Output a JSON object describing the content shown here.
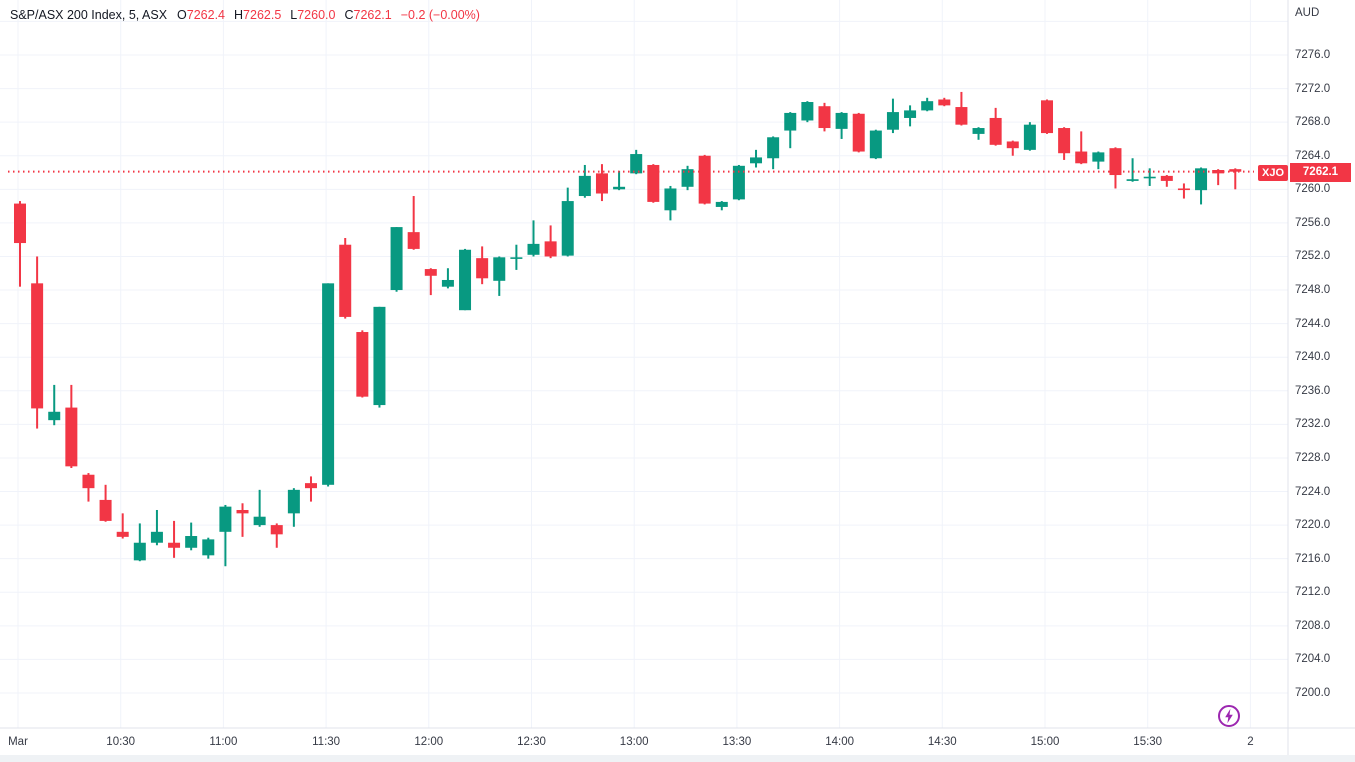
{
  "legend": {
    "title": "S&P/ASX 200 Index, 5, ASX",
    "ohlc": [
      {
        "k": "O",
        "v": "7262.4"
      },
      {
        "k": "H",
        "v": "7262.5"
      },
      {
        "k": "L",
        "v": "7260.0"
      },
      {
        "k": "C",
        "v": "7262.1"
      }
    ],
    "change": "−0.2 (−0.00%)"
  },
  "price_axis": {
    "currency": "AUD",
    "ticks": [
      "7276.0",
      "7272.0",
      "7268.0",
      "7264.0",
      "7260.0",
      "7256.0",
      "7252.0",
      "7248.0",
      "7244.0",
      "7240.0",
      "7236.0",
      "7232.0",
      "7228.0",
      "7224.0",
      "7220.0",
      "7216.0",
      "7212.0",
      "7208.0",
      "7204.0",
      "7200.0"
    ],
    "symbol_tag": "XJO",
    "last_price_label": "7262.1",
    "last_price": 7262.1
  },
  "time_axis": {
    "ticks": [
      "Mar",
      "10:30",
      "11:00",
      "11:30",
      "12:00",
      "12:30",
      "13:00",
      "13:30",
      "14:00",
      "14:30",
      "15:00",
      "15:30",
      "2"
    ]
  },
  "colors": {
    "up": "#089981",
    "down": "#f23645",
    "grid": "#f0f3fa",
    "separator": "#e0e3eb",
    "axis_text": "#363a45",
    "legend_text": "#131722",
    "badge": "#f23645",
    "price_line": "#f23645",
    "icon_purple": "#9c27b0"
  },
  "chart_data": {
    "type": "candlestick",
    "title": "S&P/ASX 200 Index, 5, ASX",
    "symbol": "XJO",
    "interval_minutes": 5,
    "currency": "AUD",
    "ylim": [
      7200,
      7280
    ],
    "y_tick_step": 4,
    "grid": true,
    "last_price": 7262.1,
    "x_ticks": [
      "Mar",
      "10:30",
      "11:00",
      "11:30",
      "12:00",
      "12:30",
      "13:00",
      "13:30",
      "14:00",
      "14:30",
      "15:00",
      "15:30",
      "2"
    ],
    "candles": [
      {
        "t": "10:00",
        "o": 7258.3,
        "h": 7258.6,
        "l": 7248.4,
        "c": 7253.6
      },
      {
        "t": "10:05",
        "o": 7248.8,
        "h": 7252.0,
        "l": 7231.5,
        "c": 7233.9
      },
      {
        "t": "10:10",
        "o": 7232.5,
        "h": 7236.7,
        "l": 7231.9,
        "c": 7233.5
      },
      {
        "t": "10:15",
        "o": 7234.0,
        "h": 7236.7,
        "l": 7226.8,
        "c": 7227.0
      },
      {
        "t": "10:20",
        "o": 7226.0,
        "h": 7226.2,
        "l": 7222.8,
        "c": 7224.4
      },
      {
        "t": "10:25",
        "o": 7223.0,
        "h": 7224.8,
        "l": 7220.4,
        "c": 7220.5
      },
      {
        "t": "10:30",
        "o": 7219.2,
        "h": 7221.4,
        "l": 7218.4,
        "c": 7218.6
      },
      {
        "t": "10:35",
        "o": 7215.8,
        "h": 7220.2,
        "l": 7215.7,
        "c": 7217.9
      },
      {
        "t": "10:40",
        "o": 7217.9,
        "h": 7221.8,
        "l": 7217.6,
        "c": 7219.2
      },
      {
        "t": "10:45",
        "o": 7217.9,
        "h": 7220.5,
        "l": 7216.1,
        "c": 7217.3
      },
      {
        "t": "10:50",
        "o": 7217.3,
        "h": 7220.3,
        "l": 7217.0,
        "c": 7218.7
      },
      {
        "t": "10:55",
        "o": 7216.4,
        "h": 7218.5,
        "l": 7216.0,
        "c": 7218.3
      },
      {
        "t": "11:00",
        "o": 7219.2,
        "h": 7222.4,
        "l": 7215.1,
        "c": 7222.2
      },
      {
        "t": "11:05",
        "o": 7221.8,
        "h": 7222.6,
        "l": 7218.6,
        "c": 7221.4
      },
      {
        "t": "11:10",
        "o": 7220.0,
        "h": 7224.2,
        "l": 7219.8,
        "c": 7221.0
      },
      {
        "t": "11:15",
        "o": 7220.0,
        "h": 7220.2,
        "l": 7217.3,
        "c": 7218.9
      },
      {
        "t": "11:20",
        "o": 7221.4,
        "h": 7224.4,
        "l": 7219.8,
        "c": 7224.2
      },
      {
        "t": "11:25",
        "o": 7225.0,
        "h": 7225.8,
        "l": 7222.8,
        "c": 7224.4
      },
      {
        "t": "11:30",
        "o": 7224.8,
        "h": 7248.8,
        "l": 7224.6,
        "c": 7248.8
      },
      {
        "t": "11:35",
        "o": 7253.4,
        "h": 7254.2,
        "l": 7244.6,
        "c": 7244.8
      },
      {
        "t": "11:40",
        "o": 7243.0,
        "h": 7243.2,
        "l": 7235.2,
        "c": 7235.3
      },
      {
        "t": "11:45",
        "o": 7234.3,
        "h": 7246.0,
        "l": 7234.0,
        "c": 7246.0
      },
      {
        "t": "11:50",
        "o": 7248.0,
        "h": 7255.5,
        "l": 7247.8,
        "c": 7255.5
      },
      {
        "t": "11:55",
        "o": 7254.9,
        "h": 7259.2,
        "l": 7252.8,
        "c": 7252.9
      },
      {
        "t": "12:00",
        "o": 7250.5,
        "h": 7250.6,
        "l": 7247.4,
        "c": 7249.7
      },
      {
        "t": "12:05",
        "o": 7248.4,
        "h": 7250.6,
        "l": 7248.2,
        "c": 7249.2
      },
      {
        "t": "12:10",
        "o": 7245.6,
        "h": 7252.9,
        "l": 7245.6,
        "c": 7252.8
      },
      {
        "t": "12:15",
        "o": 7251.8,
        "h": 7253.2,
        "l": 7248.7,
        "c": 7249.4
      },
      {
        "t": "12:20",
        "o": 7249.1,
        "h": 7252.0,
        "l": 7247.3,
        "c": 7251.9
      },
      {
        "t": "12:25",
        "o": 7251.8,
        "h": 7253.4,
        "l": 7250.4,
        "c": 7251.9
      },
      {
        "t": "12:30",
        "o": 7252.2,
        "h": 7256.3,
        "l": 7252.0,
        "c": 7253.5
      },
      {
        "t": "12:35",
        "o": 7253.8,
        "h": 7255.7,
        "l": 7251.8,
        "c": 7252.0
      },
      {
        "t": "12:40",
        "o": 7252.1,
        "h": 7260.2,
        "l": 7252.0,
        "c": 7258.6
      },
      {
        "t": "12:45",
        "o": 7259.2,
        "h": 7262.9,
        "l": 7259.0,
        "c": 7261.6
      },
      {
        "t": "12:50",
        "o": 7261.9,
        "h": 7263.0,
        "l": 7258.6,
        "c": 7259.5
      },
      {
        "t": "12:55",
        "o": 7260.0,
        "h": 7262.2,
        "l": 7259.9,
        "c": 7260.3
      },
      {
        "t": "13:00",
        "o": 7261.9,
        "h": 7264.7,
        "l": 7261.8,
        "c": 7264.2
      },
      {
        "t": "13:05",
        "o": 7262.9,
        "h": 7263.0,
        "l": 7258.4,
        "c": 7258.5
      },
      {
        "t": "13:10",
        "o": 7257.5,
        "h": 7260.4,
        "l": 7256.3,
        "c": 7260.1
      },
      {
        "t": "13:15",
        "o": 7260.3,
        "h": 7262.8,
        "l": 7259.9,
        "c": 7262.4
      },
      {
        "t": "13:20",
        "o": 7264.0,
        "h": 7264.1,
        "l": 7258.2,
        "c": 7258.3
      },
      {
        "t": "13:25",
        "o": 7257.9,
        "h": 7258.6,
        "l": 7257.5,
        "c": 7258.5
      },
      {
        "t": "13:30",
        "o": 7258.8,
        "h": 7262.9,
        "l": 7258.7,
        "c": 7262.8
      },
      {
        "t": "13:35",
        "o": 7263.1,
        "h": 7264.7,
        "l": 7262.6,
        "c": 7263.8
      },
      {
        "t": "13:40",
        "o": 7263.7,
        "h": 7266.3,
        "l": 7262.4,
        "c": 7266.2
      },
      {
        "t": "13:45",
        "o": 7267.0,
        "h": 7269.2,
        "l": 7264.9,
        "c": 7269.1
      },
      {
        "t": "13:50",
        "o": 7268.2,
        "h": 7270.5,
        "l": 7268.0,
        "c": 7270.4
      },
      {
        "t": "13:55",
        "o": 7269.9,
        "h": 7270.3,
        "l": 7266.9,
        "c": 7267.3
      },
      {
        "t": "14:00",
        "o": 7267.2,
        "h": 7269.2,
        "l": 7266.0,
        "c": 7269.1
      },
      {
        "t": "14:05",
        "o": 7269.0,
        "h": 7269.1,
        "l": 7264.4,
        "c": 7264.5
      },
      {
        "t": "14:10",
        "o": 7263.7,
        "h": 7267.1,
        "l": 7263.6,
        "c": 7267.0
      },
      {
        "t": "14:15",
        "o": 7267.1,
        "h": 7270.8,
        "l": 7266.7,
        "c": 7269.2
      },
      {
        "t": "14:20",
        "o": 7268.5,
        "h": 7270.0,
        "l": 7267.5,
        "c": 7269.4
      },
      {
        "t": "14:25",
        "o": 7269.4,
        "h": 7270.9,
        "l": 7269.3,
        "c": 7270.5
      },
      {
        "t": "14:30",
        "o": 7270.7,
        "h": 7270.9,
        "l": 7269.9,
        "c": 7270.0
      },
      {
        "t": "14:35",
        "o": 7269.8,
        "h": 7271.6,
        "l": 7267.6,
        "c": 7267.7
      },
      {
        "t": "14:40",
        "o": 7266.6,
        "h": 7267.4,
        "l": 7265.9,
        "c": 7267.3
      },
      {
        "t": "14:45",
        "o": 7268.5,
        "h": 7269.7,
        "l": 7265.2,
        "c": 7265.3
      },
      {
        "t": "14:50",
        "o": 7265.7,
        "h": 7265.8,
        "l": 7264.0,
        "c": 7264.9
      },
      {
        "t": "14:55",
        "o": 7264.7,
        "h": 7268.0,
        "l": 7264.6,
        "c": 7267.7
      },
      {
        "t": "15:00",
        "o": 7270.6,
        "h": 7270.7,
        "l": 7266.6,
        "c": 7266.7
      },
      {
        "t": "15:05",
        "o": 7267.3,
        "h": 7267.4,
        "l": 7263.5,
        "c": 7264.3
      },
      {
        "t": "15:10",
        "o": 7264.5,
        "h": 7266.9,
        "l": 7263.0,
        "c": 7263.1
      },
      {
        "t": "15:15",
        "o": 7263.3,
        "h": 7264.5,
        "l": 7262.4,
        "c": 7264.4
      },
      {
        "t": "15:20",
        "o": 7264.9,
        "h": 7265.0,
        "l": 7260.1,
        "c": 7261.7
      },
      {
        "t": "15:25",
        "o": 7261.0,
        "h": 7263.7,
        "l": 7260.9,
        "c": 7261.2
      },
      {
        "t": "15:30",
        "o": 7261.4,
        "h": 7262.5,
        "l": 7260.4,
        "c": 7261.5
      },
      {
        "t": "15:35",
        "o": 7261.6,
        "h": 7261.7,
        "l": 7260.3,
        "c": 7261.0
      },
      {
        "t": "15:40",
        "o": 7260.1,
        "h": 7260.7,
        "l": 7258.9,
        "c": 7260.0
      },
      {
        "t": "15:45",
        "o": 7259.9,
        "h": 7262.6,
        "l": 7258.2,
        "c": 7262.5
      },
      {
        "t": "15:50",
        "o": 7262.3,
        "h": 7262.4,
        "l": 7260.5,
        "c": 7261.9
      },
      {
        "t": "15:55",
        "o": 7262.4,
        "h": 7262.5,
        "l": 7260.0,
        "c": 7262.1
      }
    ]
  }
}
